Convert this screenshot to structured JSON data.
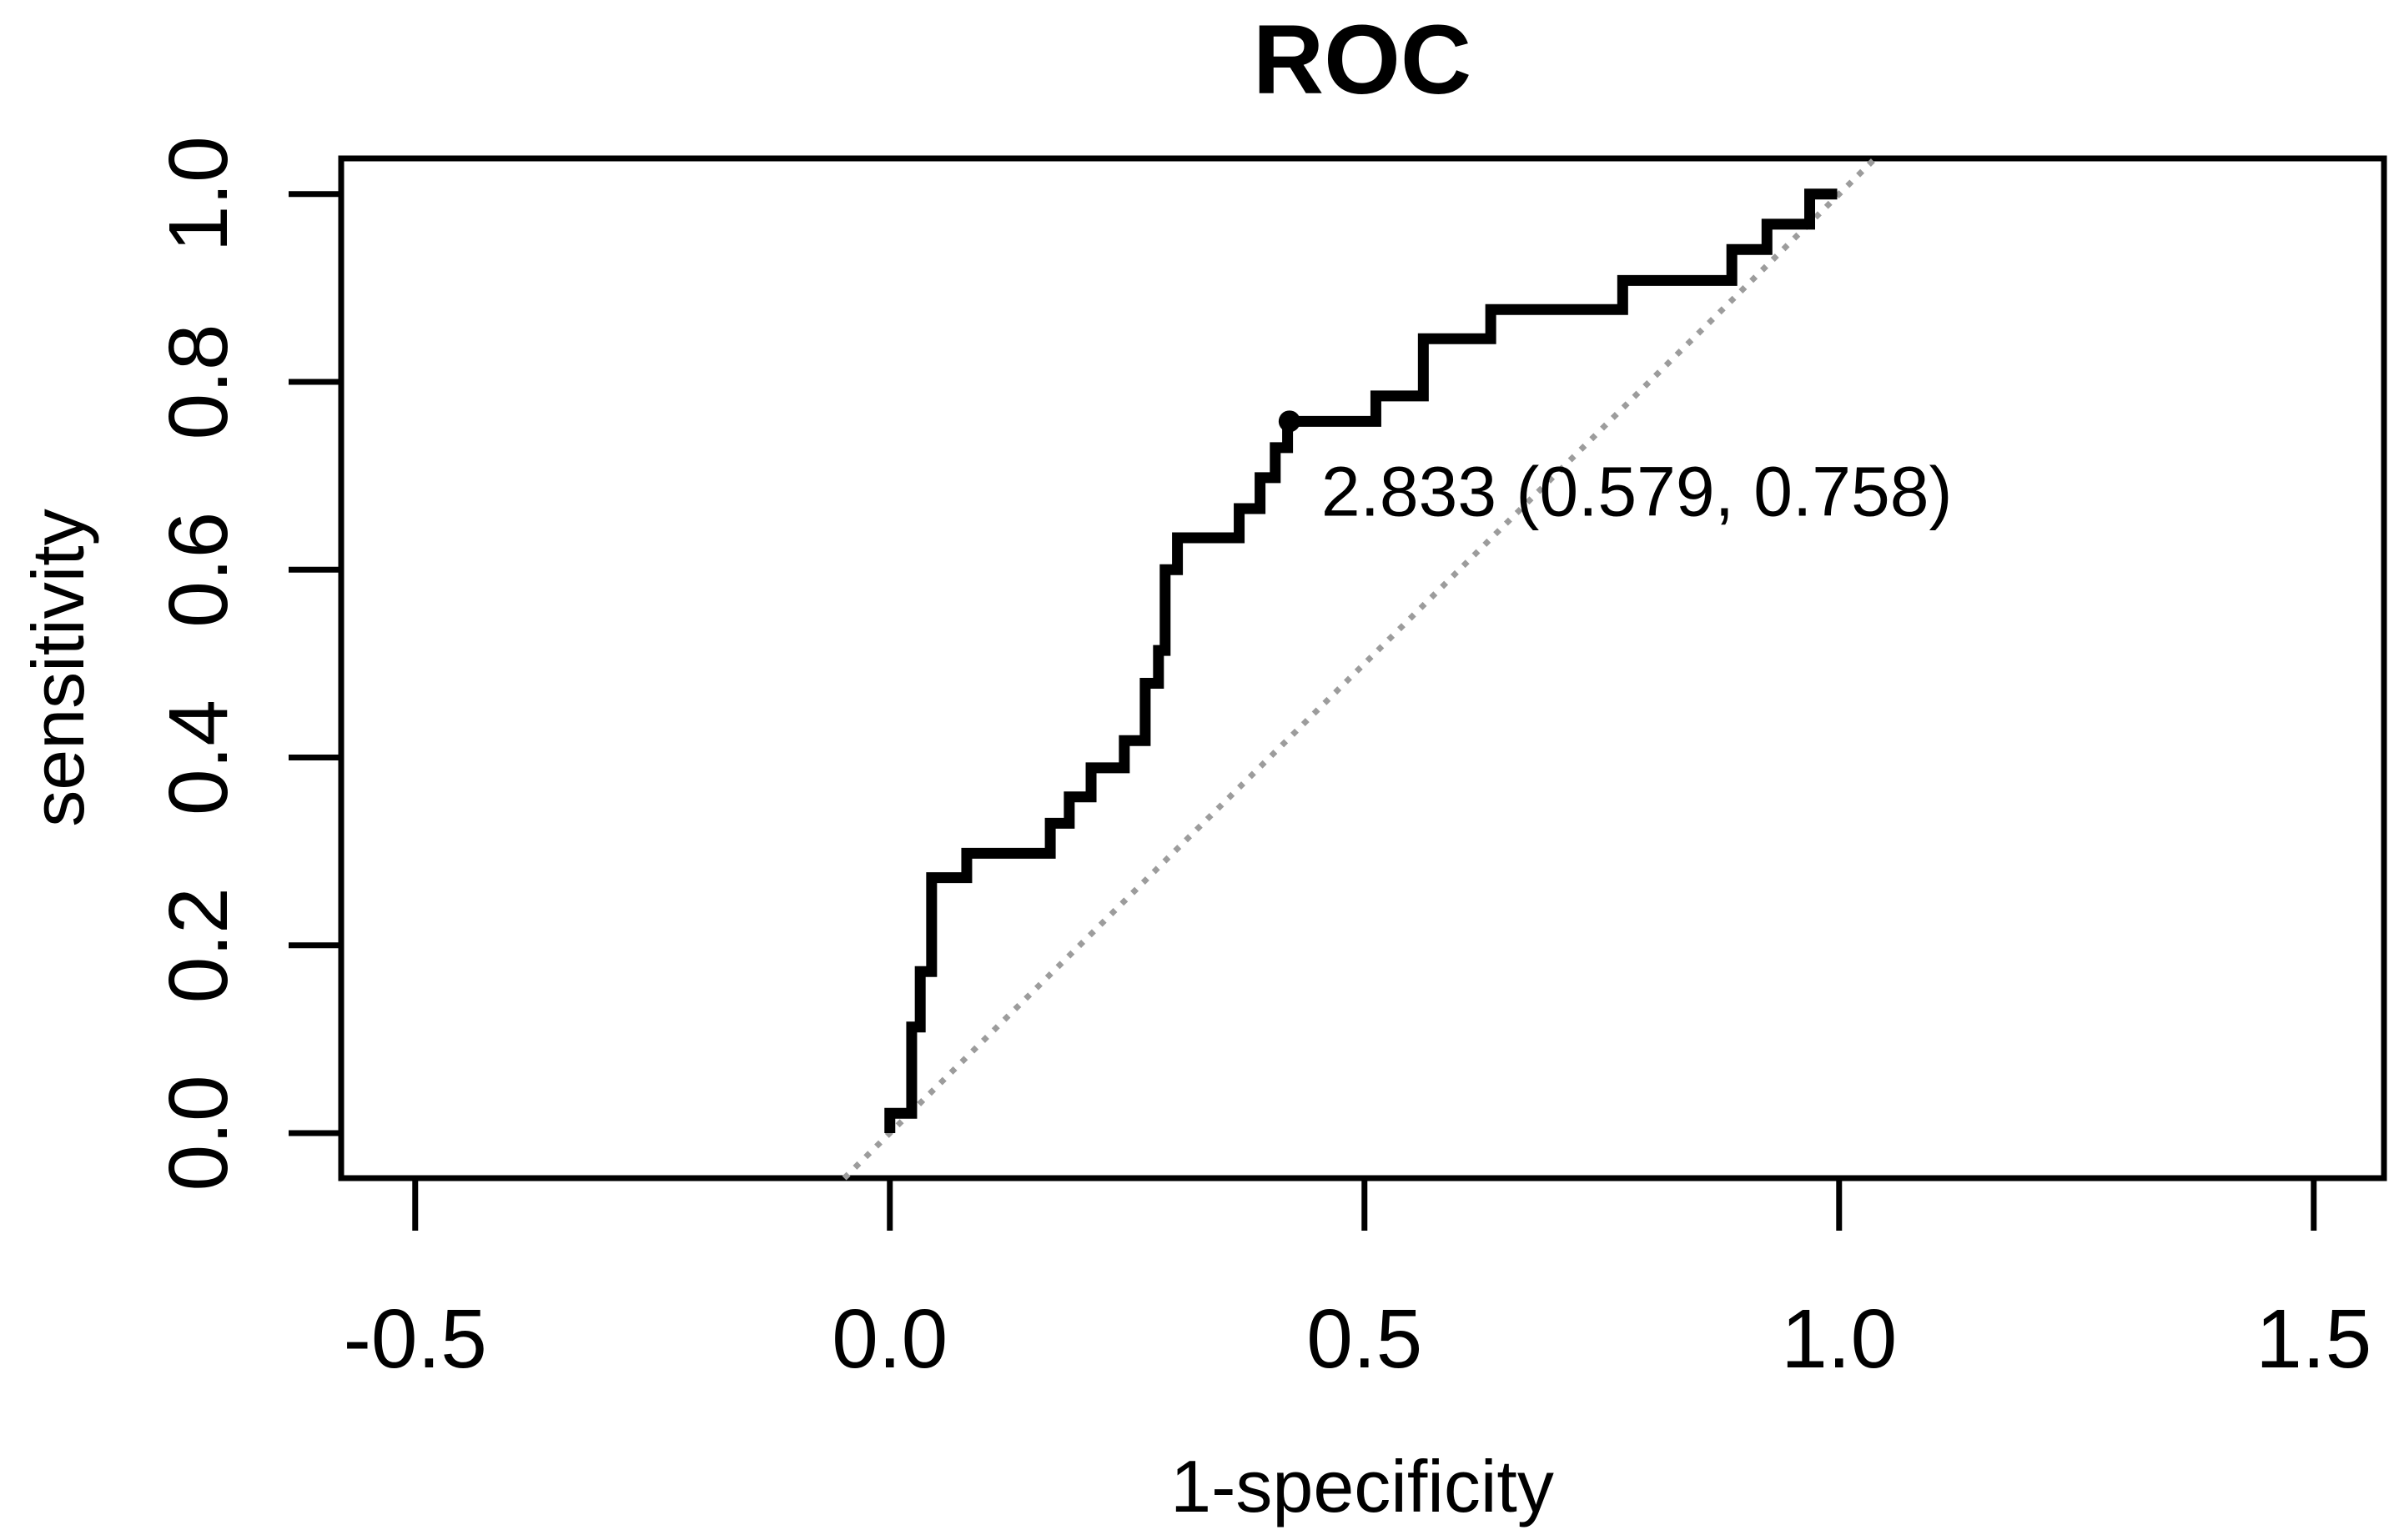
{
  "figure": {
    "background": "#ffffff"
  },
  "chart_data": {
    "type": "line",
    "subtype": "roc-step-curve",
    "title": "ROC",
    "xlabel": "1-specificity",
    "ylabel": "sensitivity",
    "xlim": [
      -0.578,
      1.574
    ],
    "ylim": [
      -0.048,
      1.038
    ],
    "grid": false,
    "legend": "none",
    "x_ticks": [
      {
        "value": -0.5,
        "label": "-0.5"
      },
      {
        "value": 0.0,
        "label": "0.0"
      },
      {
        "value": 0.5,
        "label": "0.5"
      },
      {
        "value": 1.0,
        "label": "1.0"
      },
      {
        "value": 1.5,
        "label": "1.5"
      }
    ],
    "y_ticks": [
      {
        "value": 0.0,
        "label": "0.0"
      },
      {
        "value": 0.2,
        "label": "0.2"
      },
      {
        "value": 0.4,
        "label": "0.4"
      },
      {
        "value": 0.6,
        "label": "0.6"
      },
      {
        "value": 0.8,
        "label": "0.8"
      },
      {
        "value": 1.0,
        "label": "1.0"
      }
    ],
    "reference_line": {
      "description": "identity line y = x, dotted gray",
      "from": [
        -0.048,
        -0.048
      ],
      "to": [
        1.038,
        1.038
      ],
      "color": "#9c9c9c",
      "style": "dotted"
    },
    "series": [
      {
        "name": "ROC curve",
        "color": "#000000",
        "points": [
          [
            0,
            0
          ],
          [
            0,
            0.021
          ],
          [
            0.023,
            0.021
          ],
          [
            0.023,
            0.113
          ],
          [
            0.032,
            0.113
          ],
          [
            0.032,
            0.172
          ],
          [
            0.044,
            0.172
          ],
          [
            0.044,
            0.272
          ],
          [
            0.081,
            0.272
          ],
          [
            0.081,
            0.298
          ],
          [
            0.169,
            0.298
          ],
          [
            0.169,
            0.33
          ],
          [
            0.189,
            0.33
          ],
          [
            0.189,
            0.358
          ],
          [
            0.212,
            0.358
          ],
          [
            0.212,
            0.389
          ],
          [
            0.247,
            0.389
          ],
          [
            0.247,
            0.418
          ],
          [
            0.269,
            0.418
          ],
          [
            0.269,
            0.479
          ],
          [
            0.283,
            0.479
          ],
          [
            0.283,
            0.514
          ],
          [
            0.29,
            0.514
          ],
          [
            0.29,
            0.6
          ],
          [
            0.303,
            0.6
          ],
          [
            0.303,
            0.634
          ],
          [
            0.368,
            0.634
          ],
          [
            0.368,
            0.665
          ],
          [
            0.39,
            0.665
          ],
          [
            0.39,
            0.698
          ],
          [
            0.406,
            0.698
          ],
          [
            0.406,
            0.73
          ],
          [
            0.419,
            0.73
          ],
          [
            0.419,
            0.758
          ],
          [
            0.512,
            0.758
          ],
          [
            0.512,
            0.785
          ],
          [
            0.562,
            0.785
          ],
          [
            0.562,
            0.846
          ],
          [
            0.633,
            0.846
          ],
          [
            0.633,
            0.877
          ],
          [
            0.772,
            0.877
          ],
          [
            0.772,
            0.908
          ],
          [
            0.887,
            0.908
          ],
          [
            0.887,
            0.941
          ],
          [
            0.924,
            0.941
          ],
          [
            0.924,
            0.968
          ],
          [
            0.969,
            0.968
          ],
          [
            0.969,
            1.0
          ],
          [
            0.998,
            1.0
          ]
        ]
      }
    ],
    "best_threshold": {
      "label": "2.833 (0.579, 0.758)",
      "threshold": 2.833,
      "specificity": 0.579,
      "sensitivity": 0.758,
      "point": [
        0.421,
        0.758
      ],
      "marker_color": "#000000"
    }
  }
}
